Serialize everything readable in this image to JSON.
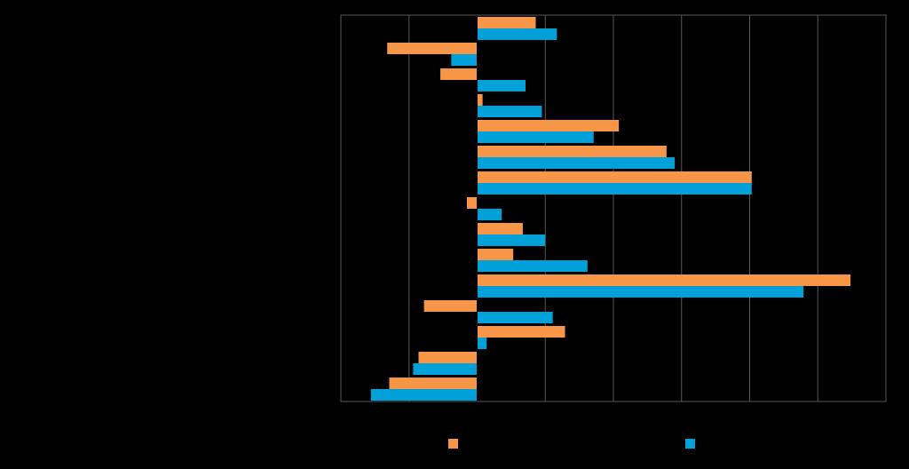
{
  "chart_data": {
    "type": "bar",
    "orientation": "horizontal",
    "categories": [
      "",
      "",
      "",
      "",
      "",
      "",
      "",
      "",
      "",
      "",
      "",
      "",
      "",
      "",
      "",
      ""
    ],
    "xlim": [
      -20,
      60
    ],
    "grid": true,
    "legend_position": "bottom",
    "series": [
      {
        "color": "#F79646",
        "values": [
          8.6,
          -13.2,
          -5.4,
          0.8,
          20.8,
          27.8,
          40.3,
          -1.5,
          6.7,
          5.3,
          54.8,
          -7.8,
          12.9,
          -8.6,
          -12.9,
          0
        ]
      },
      {
        "color": "#00A0D8",
        "values": [
          11.7,
          -3.8,
          7.1,
          9.5,
          17.1,
          29.0,
          40.3,
          3.6,
          10.0,
          16.2,
          47.9,
          11.1,
          1.4,
          -9.4,
          -15.6,
          0
        ]
      }
    ]
  }
}
